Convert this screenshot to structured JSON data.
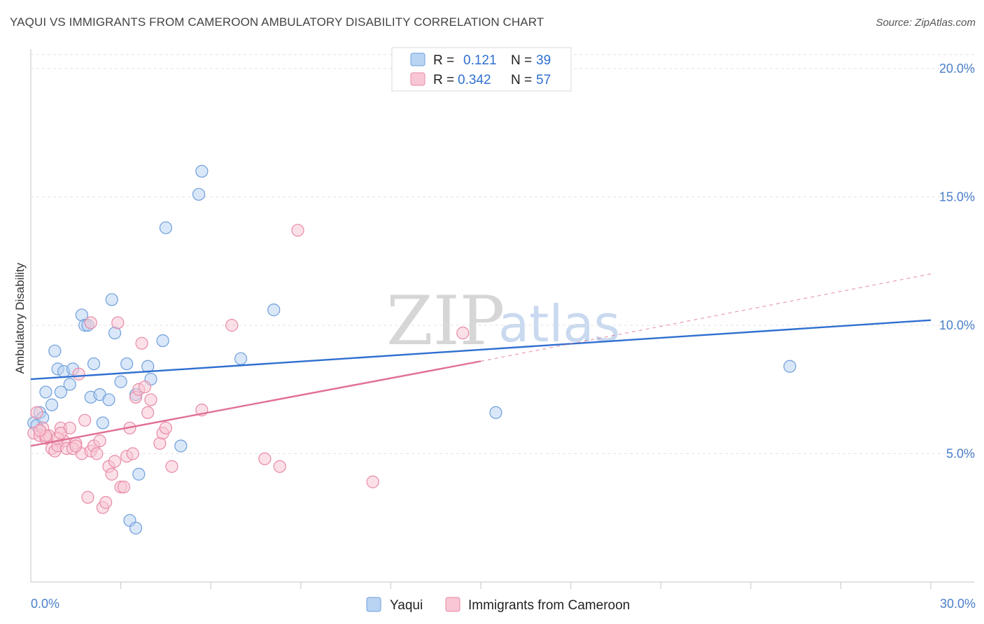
{
  "title": "YAQUI VS IMMIGRANTS FROM CAMEROON AMBULATORY DISABILITY CORRELATION CHART",
  "source": "Source: ZipAtlas.com",
  "watermark": {
    "zip": "ZIP",
    "atlas": "atlas"
  },
  "chart_data": {
    "type": "scatter",
    "title": "YAQUI VS IMMIGRANTS FROM CAMEROON AMBULATORY DISABILITY CORRELATION CHART",
    "xlabel": "",
    "ylabel": "Ambulatory Disability",
    "xlim": [
      0,
      30
    ],
    "ylim": [
      0,
      20
    ],
    "x_tick_labels": [
      "0.0%",
      "30.0%"
    ],
    "y_ticks": [
      5,
      10,
      15,
      20
    ],
    "y_tick_labels": [
      "5.0%",
      "10.0%",
      "15.0%",
      "20.0%"
    ],
    "grid": true,
    "legend": {
      "placement": "top-center",
      "entries": [
        {
          "r_label": "R = ",
          "r_value": "0.121",
          "n_label": "N = ",
          "n_value": "39"
        },
        {
          "r_label": "R = ",
          "r_value": "0.342",
          "n_label": "N = ",
          "n_value": "57"
        }
      ]
    },
    "series": [
      {
        "name": "Yaqui",
        "color": "#6f9fdc",
        "fill": "#b9d3f3",
        "trend": {
          "x0": 0,
          "y0": 7.9,
          "x1": 30,
          "y1": 10.2,
          "color": "#2f6fd0"
        },
        "points": [
          [
            0.1,
            6.2
          ],
          [
            0.2,
            6.1
          ],
          [
            0.3,
            6.6
          ],
          [
            0.4,
            6.4
          ],
          [
            0.5,
            7.4
          ],
          [
            0.7,
            6.9
          ],
          [
            0.8,
            9.0
          ],
          [
            0.9,
            8.3
          ],
          [
            1.1,
            8.2
          ],
          [
            1.4,
            8.3
          ],
          [
            1.3,
            7.7
          ],
          [
            1.7,
            10.4
          ],
          [
            1.8,
            10.0
          ],
          [
            1.9,
            10.0
          ],
          [
            2.0,
            7.2
          ],
          [
            2.1,
            8.5
          ],
          [
            2.3,
            7.3
          ],
          [
            2.4,
            6.2
          ],
          [
            2.6,
            7.1
          ],
          [
            2.7,
            11.0
          ],
          [
            2.8,
            9.7
          ],
          [
            3.0,
            7.8
          ],
          [
            3.2,
            8.5
          ],
          [
            3.5,
            7.3
          ],
          [
            3.9,
            8.4
          ],
          [
            4.0,
            7.9
          ],
          [
            4.4,
            9.4
          ],
          [
            4.5,
            13.8
          ],
          [
            5.0,
            5.3
          ],
          [
            5.6,
            15.1
          ],
          [
            5.7,
            16.0
          ],
          [
            7.0,
            8.7
          ],
          [
            8.1,
            10.6
          ],
          [
            3.3,
            2.4
          ],
          [
            3.5,
            2.1
          ],
          [
            3.6,
            4.2
          ],
          [
            1.0,
            7.4
          ],
          [
            15.5,
            6.6
          ],
          [
            25.3,
            8.4
          ]
        ]
      },
      {
        "name": "Immigrants from Cameroon",
        "color": "#e88aa6",
        "fill": "#f8c6d4",
        "trend": {
          "x0": 0,
          "y0": 5.3,
          "x1": 15,
          "y1": 8.6,
          "color": "#e06f95"
        },
        "trend_dashed": {
          "x0": 15,
          "y0": 8.6,
          "x1": 30,
          "y1": 12.0
        },
        "points": [
          [
            0.1,
            5.8
          ],
          [
            0.2,
            6.6
          ],
          [
            0.3,
            5.7
          ],
          [
            0.4,
            6.0
          ],
          [
            0.5,
            5.6
          ],
          [
            0.6,
            5.7
          ],
          [
            0.7,
            5.2
          ],
          [
            0.8,
            5.1
          ],
          [
            0.9,
            5.3
          ],
          [
            1.0,
            6.0
          ],
          [
            1.1,
            5.5
          ],
          [
            1.2,
            5.2
          ],
          [
            1.3,
            6.0
          ],
          [
            1.5,
            5.4
          ],
          [
            1.6,
            8.1
          ],
          [
            1.7,
            5.0
          ],
          [
            1.8,
            6.3
          ],
          [
            1.9,
            3.3
          ],
          [
            2.0,
            5.1
          ],
          [
            2.1,
            5.3
          ],
          [
            2.2,
            5.0
          ],
          [
            2.3,
            5.5
          ],
          [
            2.4,
            2.9
          ],
          [
            2.5,
            3.1
          ],
          [
            2.6,
            4.5
          ],
          [
            2.7,
            4.2
          ],
          [
            2.8,
            4.7
          ],
          [
            2.9,
            10.1
          ],
          [
            3.0,
            3.7
          ],
          [
            3.1,
            3.7
          ],
          [
            3.2,
            4.9
          ],
          [
            3.3,
            6.0
          ],
          [
            3.4,
            5.0
          ],
          [
            3.5,
            7.2
          ],
          [
            3.6,
            7.5
          ],
          [
            3.7,
            9.3
          ],
          [
            3.8,
            7.6
          ],
          [
            3.9,
            6.6
          ],
          [
            4.0,
            7.1
          ],
          [
            4.3,
            5.4
          ],
          [
            4.4,
            5.8
          ],
          [
            4.5,
            6.0
          ],
          [
            4.7,
            4.5
          ],
          [
            5.7,
            6.7
          ],
          [
            6.7,
            10.0
          ],
          [
            7.8,
            4.8
          ],
          [
            8.3,
            4.5
          ],
          [
            8.9,
            13.7
          ],
          [
            11.4,
            3.9
          ],
          [
            14.4,
            9.7
          ],
          [
            0.9,
            5.6
          ],
          [
            1.0,
            5.8
          ],
          [
            1.4,
            5.2
          ],
          [
            0.5,
            5.7
          ],
          [
            0.3,
            5.9
          ],
          [
            2.0,
            10.1
          ],
          [
            1.5,
            5.3
          ]
        ]
      }
    ]
  }
}
